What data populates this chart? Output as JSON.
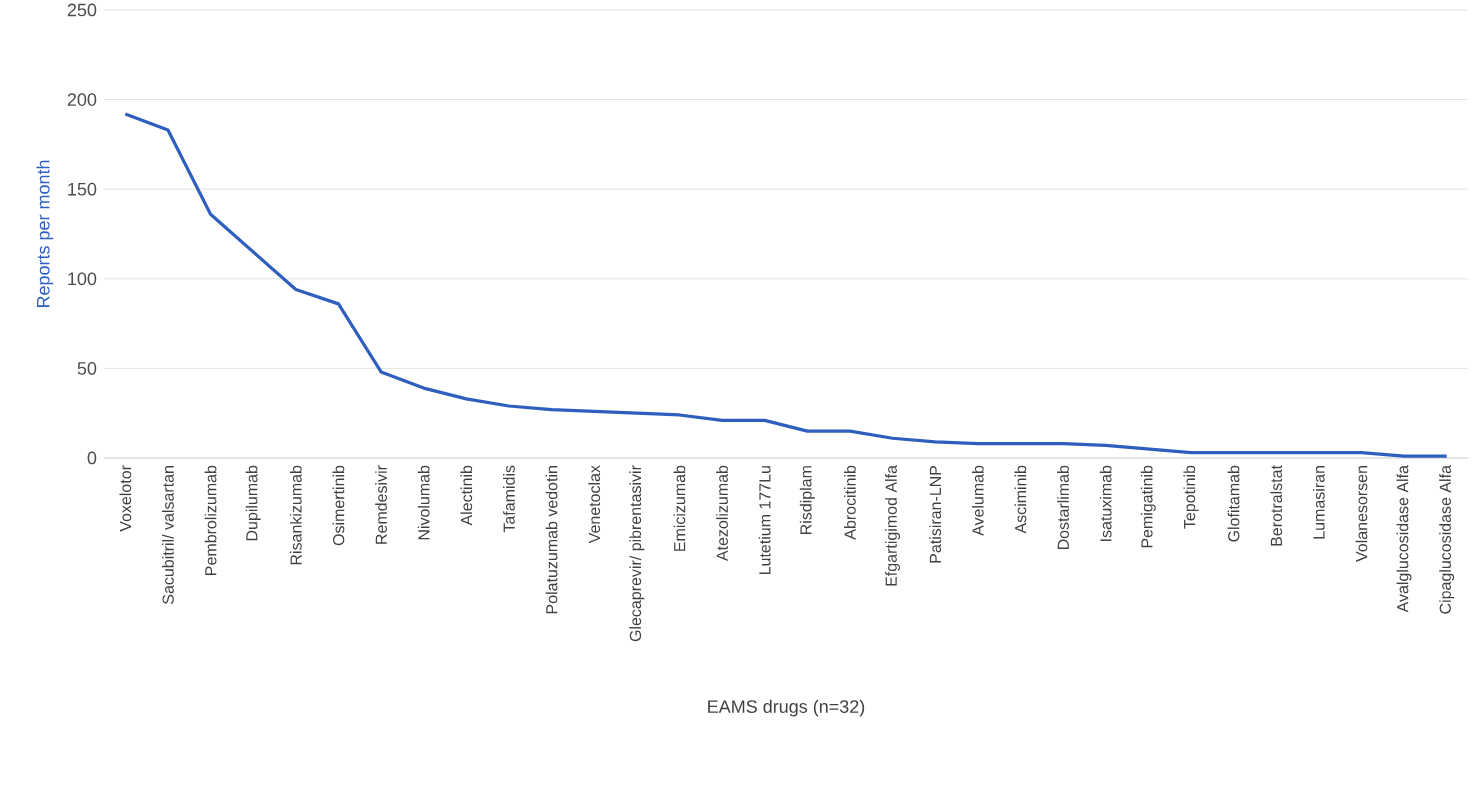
{
  "chart_data": {
    "type": "line",
    "xlabel": "EAMS drugs (n=32)",
    "ylabel": "Reports per month",
    "categories": [
      "Voxelotor",
      "Sacubitril/ valsartan",
      "Pembrolizumab",
      "Dupilumab",
      "Risankizumab",
      "Osimertinib",
      "Remdesivir",
      "Nivolumab",
      "Alectinib",
      "Tafamidis",
      "Polatuzumab vedotin",
      "Venetoclax",
      "Glecaprevir/ pibrentasivir",
      "Emicizumab",
      "Atezolizumab",
      "Lutetium 177Lu",
      "Risdiplam",
      "Abrocitinib",
      "Efgartigimod Alfa",
      "Patisiran-LNP",
      "Avelumab",
      "Asciminib",
      "Dostarlimab",
      "Isatuximab",
      "Pemigatinib",
      "Tepotinib",
      "Glofitamab",
      "Berotralstat",
      "Lumasiran",
      "Volanesorsen",
      "Avalglucosidase Alfa",
      "Cipaglucosidase Alfa"
    ],
    "series": [
      {
        "color": "#2e5fbf",
        "values": [
          192,
          183,
          136,
          115,
          94,
          86,
          48,
          39,
          33,
          29,
          27,
          26,
          25,
          24,
          21,
          21,
          15,
          15,
          11,
          9,
          8,
          8,
          8,
          7,
          5,
          3,
          3,
          3,
          3,
          3,
          1,
          1
        ]
      }
    ],
    "ylim": [
      0,
      250
    ],
    "yticks": [
      0,
      50,
      100,
      150,
      200,
      250
    ],
    "grid": "y",
    "marker": "none",
    "line_style": "solid"
  }
}
